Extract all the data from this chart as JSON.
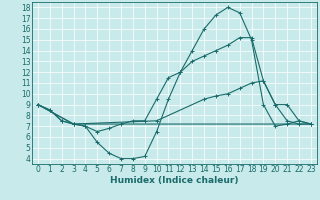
{
  "bg_color": "#c8eaea",
  "line_color": "#1a6b6b",
  "grid_color": "#b0d8d8",
  "xlabel": "Humidex (Indice chaleur)",
  "xlabel_fontsize": 6.5,
  "tick_fontsize": 5.5,
  "xlim": [
    -0.5,
    23.5
  ],
  "ylim": [
    3.5,
    18.5
  ],
  "yticks": [
    4,
    5,
    6,
    7,
    8,
    9,
    10,
    11,
    12,
    13,
    14,
    15,
    16,
    17,
    18
  ],
  "xticks": [
    0,
    1,
    2,
    3,
    4,
    5,
    6,
    7,
    8,
    9,
    10,
    11,
    12,
    13,
    14,
    15,
    16,
    17,
    18,
    19,
    20,
    21,
    22,
    23
  ],
  "curve1_x": [
    0,
    1,
    2,
    3,
    4,
    5,
    6,
    7,
    8,
    9,
    10,
    11,
    12,
    13,
    14,
    15,
    16,
    17,
    18,
    19,
    20,
    21,
    22,
    23
  ],
  "curve1_y": [
    9.0,
    8.5,
    7.5,
    7.2,
    7.0,
    5.5,
    4.5,
    4.0,
    4.0,
    4.2,
    6.5,
    9.5,
    12.0,
    14.0,
    16.0,
    17.3,
    18.0,
    17.5,
    15.0,
    9.0,
    7.0,
    7.2,
    7.5,
    7.2
  ],
  "curve2_x": [
    0,
    1,
    2,
    3,
    4,
    5,
    6,
    7,
    8,
    9,
    10,
    11,
    12,
    13,
    14,
    15,
    16,
    17,
    18,
    19,
    20,
    21,
    22,
    23
  ],
  "curve2_y": [
    9.0,
    8.5,
    7.5,
    7.2,
    7.0,
    6.5,
    6.8,
    7.2,
    7.5,
    7.5,
    9.5,
    11.5,
    12.0,
    13.0,
    13.5,
    14.0,
    14.5,
    15.2,
    15.2,
    11.2,
    9.0,
    7.5,
    7.2,
    7.2
  ],
  "curve3_x": [
    0,
    3,
    23
  ],
  "curve3_y": [
    9.0,
    7.2,
    7.2
  ],
  "curve4_x": [
    0,
    3,
    10,
    14,
    15,
    16,
    17,
    18,
    19,
    20,
    21,
    22,
    23
  ],
  "curve4_y": [
    9.0,
    7.2,
    7.5,
    9.5,
    9.8,
    10.0,
    10.5,
    11.0,
    11.2,
    9.0,
    9.0,
    7.5,
    7.2
  ]
}
